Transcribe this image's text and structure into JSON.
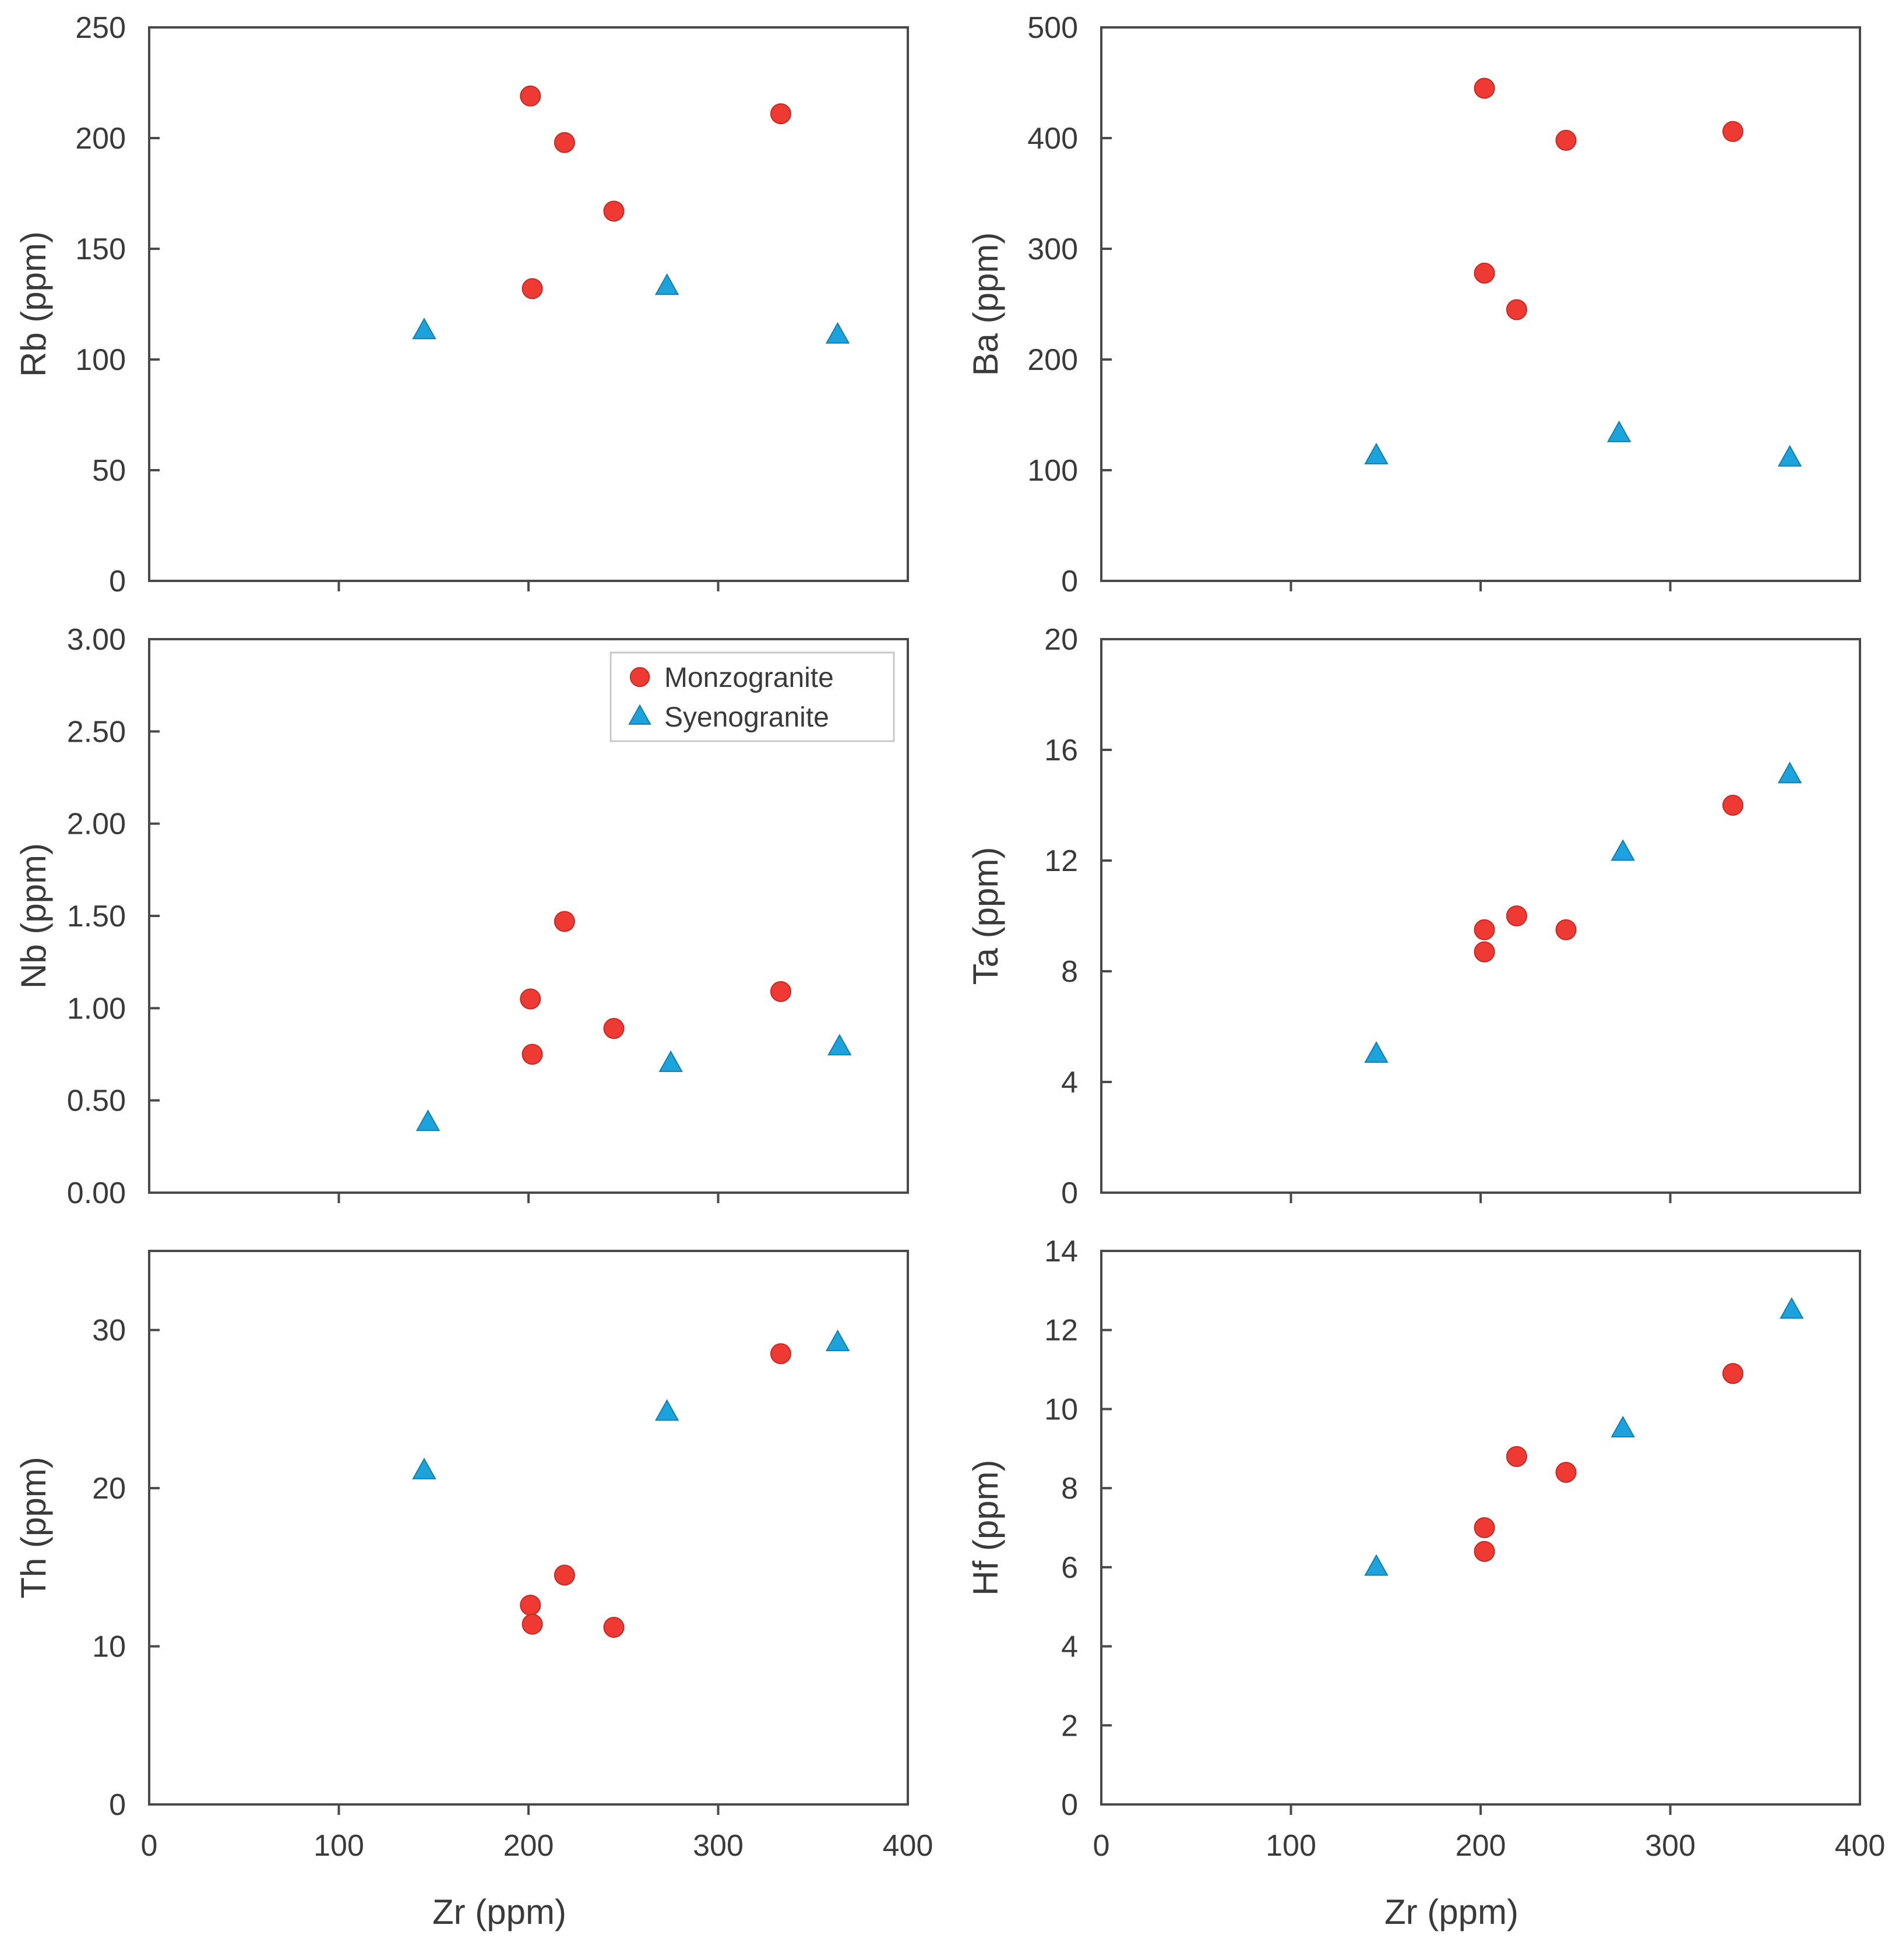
{
  "colors": {
    "monzogranite": "#ee3a33",
    "syenogranite": "#1aa3dd",
    "axis": "#4a4a4a",
    "text": "#3a3a3a"
  },
  "legend": {
    "entries": [
      {
        "label": "Monzogranite",
        "marker": "circle"
      },
      {
        "label": "Syenogranite",
        "marker": "triangle"
      }
    ]
  },
  "chart_data": [
    {
      "id": "rb",
      "type": "scatter",
      "xlabel": "Zr (ppm)",
      "ylabel": "Rb (ppm)",
      "xlim": [
        0,
        400
      ],
      "ylim": [
        0,
        250
      ],
      "xticks": [
        100,
        200,
        300
      ],
      "xtick_labels": [],
      "yticks": [
        "0",
        "50",
        "100",
        "150",
        "200",
        "250"
      ],
      "series": [
        {
          "name": "Monzogranite",
          "points": [
            [
              201,
              219
            ],
            [
              202,
              132
            ],
            [
              219,
              198
            ],
            [
              245,
              167
            ],
            [
              333,
              211
            ]
          ]
        },
        {
          "name": "Syenogranite",
          "points": [
            [
              145,
              113
            ],
            [
              273,
              133
            ],
            [
              363,
              111
            ]
          ]
        }
      ]
    },
    {
      "id": "ba",
      "type": "scatter",
      "xlabel": "Zr (ppm)",
      "ylabel": "Ba (ppm)",
      "xlim": [
        0,
        400
      ],
      "ylim": [
        0,
        500
      ],
      "xticks": [
        100,
        200,
        300
      ],
      "xtick_labels": [],
      "yticks": [
        "0",
        "100",
        "200",
        "300",
        "400",
        "500"
      ],
      "series": [
        {
          "name": "Monzogranite",
          "points": [
            [
              202,
              445
            ],
            [
              202,
              278
            ],
            [
              219,
              245
            ],
            [
              245,
              398
            ],
            [
              333,
              406
            ]
          ]
        },
        {
          "name": "Syenogranite",
          "points": [
            [
              145,
              113
            ],
            [
              273,
              133
            ],
            [
              363,
              111
            ]
          ]
        }
      ]
    },
    {
      "id": "nb",
      "type": "scatter",
      "xlabel": "Zr (ppm)",
      "ylabel": "Nb (ppm)",
      "xlim": [
        0,
        400
      ],
      "ylim": [
        0,
        3
      ],
      "xticks": [
        100,
        200,
        300
      ],
      "xtick_labels": [],
      "yticks": [
        "0.00",
        "0.50",
        "1.00",
        "1.50",
        "2.00",
        "2.50",
        "3.00"
      ],
      "legend": true,
      "series": [
        {
          "name": "Monzogranite",
          "points": [
            [
              201,
              1.05
            ],
            [
              202,
              0.75
            ],
            [
              219,
              1.47
            ],
            [
              245,
              0.89
            ],
            [
              333,
              1.09
            ]
          ]
        },
        {
          "name": "Syenogranite",
          "points": [
            [
              147,
              0.38
            ],
            [
              275,
              0.7
            ],
            [
              364,
              0.79
            ]
          ]
        }
      ]
    },
    {
      "id": "ta",
      "type": "scatter",
      "xlabel": "Zr (ppm)",
      "ylabel": "Ta (ppm)",
      "xlim": [
        0,
        400
      ],
      "ylim": [
        0,
        20
      ],
      "xticks": [
        100,
        200,
        300
      ],
      "xtick_labels": [],
      "yticks": [
        "0",
        "4",
        "8",
        "12",
        "16",
        "20"
      ],
      "series": [
        {
          "name": "Monzogranite",
          "points": [
            [
              202,
              9.5
            ],
            [
              202,
              8.7
            ],
            [
              219,
              10.0
            ],
            [
              245,
              9.5
            ],
            [
              333,
              14.0
            ]
          ]
        },
        {
          "name": "Syenogranite",
          "points": [
            [
              145,
              5.0
            ],
            [
              275,
              12.3
            ],
            [
              363,
              15.1
            ]
          ]
        }
      ]
    },
    {
      "id": "th",
      "type": "scatter",
      "xlabel": "Zr (ppm)",
      "ylabel": "Th (ppm)",
      "xlim": [
        0,
        400
      ],
      "ylim": [
        0,
        35
      ],
      "xticks": [
        0,
        100,
        200,
        300,
        400
      ],
      "xtick_labels": [
        "0",
        "100",
        "200",
        "300",
        "400"
      ],
      "yticks": [
        "0",
        "10",
        "20",
        "30"
      ],
      "series": [
        {
          "name": "Monzogranite",
          "points": [
            [
              201,
              12.6
            ],
            [
              202,
              11.4
            ],
            [
              219,
              14.5
            ],
            [
              245,
              11.2
            ],
            [
              333,
              28.5
            ]
          ]
        },
        {
          "name": "Syenogranite",
          "points": [
            [
              145,
              21.1
            ],
            [
              273,
              24.8
            ],
            [
              363,
              29.2
            ]
          ]
        }
      ]
    },
    {
      "id": "hf",
      "type": "scatter",
      "xlabel": "Zr (ppm)",
      "ylabel": "Hf (ppm)",
      "xlim": [
        0,
        400
      ],
      "ylim": [
        0,
        14
      ],
      "xticks": [
        0,
        100,
        200,
        300,
        400
      ],
      "xtick_labels": [
        "0",
        "100",
        "200",
        "300",
        "400"
      ],
      "yticks": [
        "0",
        "2",
        "4",
        "6",
        "8",
        "10",
        "12",
        "14"
      ],
      "series": [
        {
          "name": "Monzogranite",
          "points": [
            [
              202,
              7.0
            ],
            [
              202,
              6.4
            ],
            [
              219,
              8.8
            ],
            [
              245,
              8.4
            ],
            [
              333,
              10.9
            ]
          ]
        },
        {
          "name": "Syenogranite",
          "points": [
            [
              145,
              6.0
            ],
            [
              275,
              9.5
            ],
            [
              364,
              12.5
            ]
          ]
        }
      ]
    }
  ]
}
